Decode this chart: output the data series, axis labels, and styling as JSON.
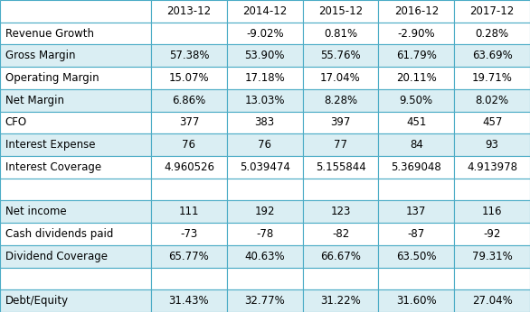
{
  "columns": [
    "",
    "2013-12",
    "2014-12",
    "2015-12",
    "2016-12",
    "2017-12"
  ],
  "rows": [
    [
      "Revenue Growth",
      "",
      "-9.02%",
      "0.81%",
      "-2.90%",
      "0.28%"
    ],
    [
      "Gross Margin",
      "57.38%",
      "53.90%",
      "55.76%",
      "61.79%",
      "63.69%"
    ],
    [
      "Operating Margin",
      "15.07%",
      "17.18%",
      "17.04%",
      "20.11%",
      "19.71%"
    ],
    [
      "Net Margin",
      "6.86%",
      "13.03%",
      "8.28%",
      "9.50%",
      "8.02%"
    ],
    [
      "CFO",
      "377",
      "383",
      "397",
      "451",
      "457"
    ],
    [
      "Interest Expense",
      "76",
      "76",
      "77",
      "84",
      "93"
    ],
    [
      "Interest Coverage",
      "4.960526",
      "5.039474",
      "5.155844",
      "5.369048",
      "4.913978"
    ],
    [
      "",
      "",
      "",
      "",
      "",
      ""
    ],
    [
      "Net income",
      "111",
      "192",
      "123",
      "137",
      "116"
    ],
    [
      "Cash dividends paid",
      "-73",
      "-78",
      "-82",
      "-87",
      "-92"
    ],
    [
      "Dividend Coverage",
      "65.77%",
      "40.63%",
      "66.67%",
      "63.50%",
      "79.31%"
    ],
    [
      "",
      "",
      "",
      "",
      "",
      ""
    ],
    [
      "Debt/Equity",
      "31.43%",
      "32.77%",
      "31.22%",
      "31.60%",
      "27.04%"
    ]
  ],
  "row_bg_list": [
    "#ffffff",
    "#daeef3",
    "#ffffff",
    "#daeef3",
    "#ffffff",
    "#daeef3",
    "#ffffff",
    "#ffffff",
    "#daeef3",
    "#ffffff",
    "#daeef3",
    "#ffffff",
    "#daeef3"
  ],
  "header_bg": "#ffffff",
  "border_color": "#4bacc6",
  "text_color": "#000000",
  "font_size": 8.5,
  "fig_width": 5.86,
  "fig_height": 3.46
}
